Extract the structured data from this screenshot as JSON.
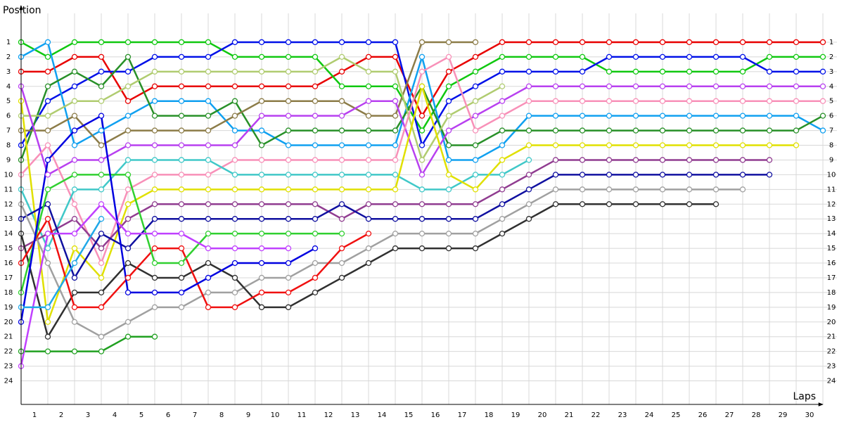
{
  "chart_data": {
    "type": "line",
    "x_label": "Laps",
    "y_label": "Position",
    "x": [
      0,
      1,
      2,
      3,
      4,
      5,
      6,
      7,
      8,
      9,
      10,
      11,
      12,
      13,
      14,
      15,
      16,
      17,
      18,
      19,
      20,
      21,
      22,
      23,
      24,
      25,
      26,
      27,
      28,
      29,
      30
    ],
    "xlim": [
      0,
      30
    ],
    "ylim": [
      0,
      25.6
    ],
    "inverted_y": true,
    "grid": true,
    "xticks": [
      {
        "value": 0.5,
        "label": "1"
      },
      {
        "value": 1.5,
        "label": "2"
      },
      {
        "value": 2.5,
        "label": "3"
      },
      {
        "value": 3.5,
        "label": "4"
      },
      {
        "value": 4.5,
        "label": "5"
      },
      {
        "value": 5.5,
        "label": "6"
      },
      {
        "value": 6.5,
        "label": "7"
      },
      {
        "value": 7.5,
        "label": "8"
      },
      {
        "value": 8.5,
        "label": "9"
      },
      {
        "value": 9.5,
        "label": "10"
      },
      {
        "value": 10.5,
        "label": "11"
      },
      {
        "value": 11.5,
        "label": "12"
      },
      {
        "value": 12.5,
        "label": "13"
      },
      {
        "value": 13.5,
        "label": "14"
      },
      {
        "value": 14.5,
        "label": "15"
      },
      {
        "value": 15.5,
        "label": "16"
      },
      {
        "value": 16.5,
        "label": "17"
      },
      {
        "value": 17.5,
        "label": "18"
      },
      {
        "value": 18.5,
        "label": "19"
      },
      {
        "value": 19.5,
        "label": "20"
      },
      {
        "value": 20.5,
        "label": "21"
      },
      {
        "value": 21.5,
        "label": "22"
      },
      {
        "value": 22.5,
        "label": "23"
      },
      {
        "value": 23.5,
        "label": "24"
      },
      {
        "value": 24.5,
        "label": "25"
      },
      {
        "value": 25.5,
        "label": "26"
      },
      {
        "value": 26.5,
        "label": "27"
      },
      {
        "value": 27.5,
        "label": "28"
      },
      {
        "value": 28.5,
        "label": "29"
      },
      {
        "value": 29.5,
        "label": "30"
      }
    ],
    "yticks": [
      1,
      2,
      3,
      4,
      5,
      6,
      7,
      8,
      9,
      10,
      11,
      12,
      13,
      14,
      15,
      16,
      17,
      18,
      19,
      20,
      21,
      22,
      23,
      24
    ],
    "series": [
      {
        "color": "#e80000",
        "values": [
          3,
          3,
          2,
          2,
          5,
          4,
          4,
          4,
          4,
          4,
          4,
          4,
          3,
          2,
          2,
          6,
          3,
          2,
          1,
          1,
          1,
          1,
          1,
          1,
          1,
          1,
          1,
          1,
          1,
          1,
          1
        ]
      },
      {
        "color": "#10c810",
        "values": [
          1,
          2,
          1,
          1,
          1,
          1,
          1,
          1,
          2,
          2,
          2,
          2,
          4,
          4,
          4,
          7,
          4,
          3,
          2,
          2,
          2,
          2,
          3,
          3,
          3,
          3,
          3,
          3,
          2,
          2,
          2
        ]
      },
      {
        "color": "#0010e8",
        "values": [
          8,
          5,
          4,
          3,
          3,
          2,
          2,
          2,
          1,
          1,
          1,
          1,
          1,
          1,
          1,
          8,
          5,
          4,
          3,
          3,
          3,
          3,
          2,
          2,
          2,
          2,
          2,
          2,
          3,
          3,
          3
        ]
      },
      {
        "color": "#10a0f0",
        "values": [
          2,
          1,
          8,
          7,
          6,
          5,
          5,
          5,
          7,
          7,
          8,
          8,
          8,
          8,
          8,
          2,
          9,
          9,
          8,
          6,
          6,
          6,
          6,
          6,
          6,
          6,
          6,
          6,
          6,
          6,
          7
        ]
      },
      {
        "color": "#289028",
        "values": [
          9,
          4,
          3,
          4,
          2,
          6,
          6,
          6,
          5,
          8,
          7,
          7,
          7,
          7,
          7,
          4,
          8,
          8,
          7,
          7,
          7,
          7,
          7,
          7,
          7,
          7,
          7,
          7,
          7,
          7,
          6
        ]
      },
      {
        "color": "#8c7c48",
        "values": [
          7,
          7,
          6,
          8,
          7,
          7,
          7,
          7,
          6,
          5,
          5,
          5,
          5,
          6,
          6,
          1,
          1,
          1,
          null,
          null,
          null,
          null,
          null,
          null,
          null,
          null,
          null,
          null,
          null,
          null,
          null
        ]
      },
      {
        "color": "#b0cc70",
        "values": [
          6,
          6,
          5,
          5,
          4,
          3,
          3,
          3,
          3,
          3,
          3,
          3,
          2,
          3,
          3,
          9,
          6,
          5,
          4,
          null,
          null,
          null,
          null,
          null,
          null,
          null,
          null,
          null,
          null,
          null,
          null
        ]
      },
      {
        "color": "#b840f0",
        "values": [
          4,
          10,
          9,
          9,
          8,
          8,
          8,
          8,
          8,
          6,
          6,
          6,
          6,
          5,
          5,
          10,
          7,
          6,
          5,
          4,
          4,
          4,
          4,
          4,
          4,
          4,
          4,
          4,
          4,
          4,
          4
        ]
      },
      {
        "color": "#f890b8",
        "values": [
          10,
          8,
          12,
          16,
          11,
          10,
          10,
          10,
          9,
          9,
          9,
          9,
          9,
          9,
          9,
          3,
          2,
          7,
          6,
          5,
          5,
          5,
          5,
          5,
          5,
          5,
          5,
          5,
          5,
          5,
          5
        ]
      },
      {
        "color": "#40c8c8",
        "values": [
          11,
          15,
          11,
          11,
          9,
          9,
          9,
          9,
          10,
          10,
          10,
          10,
          10,
          10,
          10,
          11,
          11,
          10,
          10,
          9,
          null,
          null,
          null,
          null,
          null,
          null,
          null,
          null,
          null,
          null,
          null
        ]
      },
      {
        "color": "#e0e000",
        "values": [
          5,
          20,
          15,
          17,
          12,
          11,
          11,
          11,
          11,
          11,
          11,
          11,
          11,
          11,
          11,
          4,
          10,
          11,
          9,
          8,
          8,
          8,
          8,
          8,
          8,
          8,
          8,
          8,
          8,
          8,
          null
        ]
      },
      {
        "color": "#903c90",
        "values": [
          15,
          14,
          13,
          15,
          13,
          12,
          12,
          12,
          12,
          12,
          12,
          12,
          13,
          12,
          12,
          12,
          12,
          12,
          11,
          10,
          9,
          9,
          9,
          9,
          9,
          9,
          9,
          9,
          9,
          null,
          null
        ]
      },
      {
        "color": "#1010a0",
        "values": [
          13,
          12,
          17,
          14,
          15,
          13,
          13,
          13,
          13,
          13,
          13,
          13,
          12,
          13,
          13,
          13,
          13,
          13,
          12,
          11,
          10,
          10,
          10,
          10,
          10,
          10,
          10,
          10,
          10,
          null,
          null
        ]
      },
      {
        "color": "#a0a0a0",
        "values": [
          12,
          16,
          20,
          21,
          20,
          19,
          19,
          18,
          18,
          17,
          17,
          16,
          16,
          15,
          14,
          14,
          14,
          14,
          13,
          12,
          11,
          11,
          11,
          11,
          11,
          11,
          11,
          11,
          null,
          null,
          null
        ]
      },
      {
        "color": "#303030",
        "values": [
          14,
          21,
          18,
          18,
          16,
          17,
          17,
          16,
          17,
          19,
          19,
          18,
          17,
          16,
          15,
          15,
          15,
          15,
          14,
          13,
          12,
          12,
          12,
          12,
          12,
          12,
          12,
          null,
          null,
          null,
          null
        ]
      },
      {
        "color": "#f01010",
        "values": [
          16,
          13,
          19,
          19,
          17,
          15,
          15,
          19,
          19,
          18,
          18,
          17,
          15,
          14,
          null,
          null,
          null,
          null,
          null,
          null,
          null,
          null,
          null,
          null,
          null,
          null,
          null,
          null,
          null,
          null,
          null
        ]
      },
      {
        "color": "#30d030",
        "values": [
          18,
          11,
          10,
          10,
          10,
          16,
          16,
          14,
          14,
          14,
          14,
          14,
          14,
          null,
          null,
          null,
          null,
          null,
          null,
          null,
          null,
          null,
          null,
          null,
          null,
          null,
          null,
          null,
          null,
          null,
          null
        ]
      },
      {
        "color": "#20a020",
        "values": [
          22,
          22,
          22,
          22,
          21,
          21,
          null,
          null,
          null,
          null,
          null,
          null,
          null,
          null,
          null,
          null,
          null,
          null,
          null,
          null,
          null,
          null,
          null,
          null,
          null,
          null,
          null,
          null,
          null,
          null,
          null
        ]
      },
      {
        "color": "#0000e0",
        "values": [
          20,
          9,
          7,
          6,
          18,
          18,
          18,
          17,
          16,
          16,
          16,
          15,
          null,
          null,
          null,
          null,
          null,
          null,
          null,
          null,
          null,
          null,
          null,
          null,
          null,
          null,
          null,
          null,
          null,
          null,
          null
        ]
      },
      {
        "color": "#c040ff",
        "values": [
          23,
          14,
          14,
          12,
          14,
          14,
          14,
          15,
          15,
          15,
          15,
          null,
          null,
          null,
          null,
          null,
          null,
          null,
          null,
          null,
          null,
          null,
          null,
          null,
          null,
          null,
          null,
          null,
          null,
          null,
          null
        ]
      },
      {
        "color": "#20a8e8",
        "values": [
          19,
          19,
          16,
          13,
          null,
          null,
          null,
          null,
          null,
          null,
          null,
          null,
          null,
          null,
          null,
          null,
          null,
          null,
          null,
          null,
          null,
          null,
          null,
          null,
          null,
          null,
          null,
          null,
          null,
          null,
          null
        ]
      }
    ]
  }
}
